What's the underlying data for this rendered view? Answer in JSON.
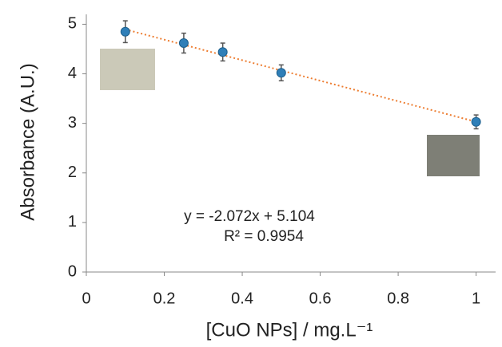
{
  "chart_data": {
    "type": "scatter",
    "xlabel": "[CuO NPs] / mg.L⁻¹",
    "ylabel": "Absorbance (A.U.)",
    "x": [
      0.1,
      0.25,
      0.35,
      0.5,
      1
    ],
    "values": [
      4.85,
      4.62,
      4.44,
      4.02,
      3.03
    ],
    "errors": [
      0.22,
      0.2,
      0.18,
      0.16,
      0.14
    ],
    "color": "#2f7fb8",
    "xlim": [
      0,
      1.05
    ],
    "ylim": [
      0,
      5.2
    ],
    "xticks": [
      0,
      0.2,
      0.4,
      0.6,
      0.8,
      1
    ],
    "yticks": [
      0,
      1,
      2,
      3,
      4,
      5
    ],
    "trendline": {
      "slope": -2.072,
      "intercept": 5.104,
      "color": "#ed7d31",
      "equation": "y = -2.072x + 5.104",
      "r2": "R² = 0.9954"
    }
  }
}
